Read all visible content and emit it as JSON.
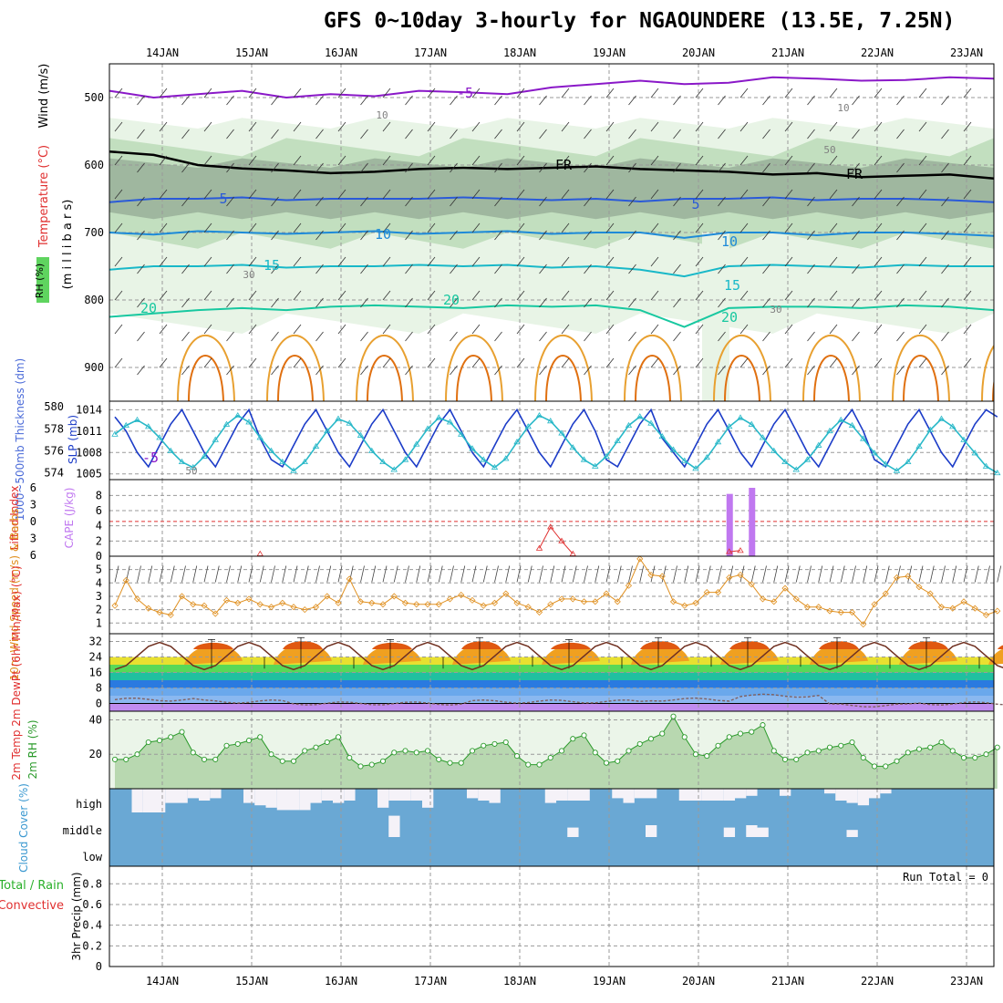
{
  "title": "GFS 0~10day 3-hourly for NGAOUNDERE (13.5E, 7.25N)",
  "colors": {
    "rh_light": "#e8f4e6",
    "rh_mid": "#c2dfbf",
    "rh_dark": "#9fb79f",
    "rh_green": "#5fd45f",
    "rh_bright": "#00e000",
    "temp_purple": "#8a18c8",
    "temp_blue": "#2a5ad8",
    "temp_lightblue": "#1e8ad8",
    "temp_cyan": "#18b8c8",
    "temp_teal": "#18c8a0",
    "temp_orange": "#e8a030",
    "temp_darkorange": "#e07010",
    "temp_magenta": "#e0109a",
    "slp": "#1c3cc8",
    "thickness": "#28b8c8",
    "cape": "#c078f0",
    "lifted": "#e03030",
    "wind10": "#e09020",
    "rh2m": "#2a9a2a",
    "cloud": "#6aa8d4",
    "cloud_white": "#f5f2f8"
  },
  "chart_data": [
    {
      "id": "upper_air",
      "type": "heatmap",
      "ylabel_parts": [
        "Wind (m/s)",
        "Temperature (°C)",
        "(m i l l i b a r s)",
        "RH (%)"
      ],
      "yticks": [
        500,
        600,
        700,
        800,
        900
      ],
      "ylim": [
        450,
        950
      ],
      "x_dates": [
        "14JAN",
        "15JAN",
        "16JAN",
        "17JAN",
        "18JAN",
        "19JAN",
        "20JAN",
        "21JAN",
        "22JAN",
        "23JAN"
      ],
      "isotherms": [
        {
          "label": "-5",
          "level": [
            490,
            500,
            495,
            490,
            500,
            495,
            498,
            490,
            492,
            495,
            485,
            480,
            475,
            480,
            478,
            470,
            472,
            475,
            474,
            470,
            472
          ],
          "color": "temp_purple"
        },
        {
          "label": "FR",
          "level": [
            580,
            585,
            600,
            605,
            608,
            612,
            610,
            606,
            604,
            606,
            604,
            602,
            606,
            608,
            610,
            614,
            612,
            618,
            616,
            614,
            620
          ],
          "color": "#000000"
        },
        {
          "label": "5",
          "level": [
            655,
            650,
            650,
            648,
            652,
            650,
            650,
            650,
            648,
            650,
            652,
            650,
            654,
            650,
            650,
            648,
            652,
            650,
            650,
            652,
            655
          ],
          "color": "temp_blue"
        },
        {
          "label": "10",
          "level": [
            700,
            703,
            698,
            700,
            702,
            700,
            698,
            702,
            700,
            698,
            702,
            700,
            700,
            708,
            700,
            700,
            704,
            700,
            700,
            702,
            705
          ],
          "color": "temp_lightblue"
        },
        {
          "label": "15",
          "level": [
            755,
            750,
            750,
            748,
            752,
            750,
            750,
            748,
            750,
            748,
            752,
            750,
            755,
            765,
            750,
            748,
            750,
            752,
            748,
            750,
            750
          ],
          "color": "temp_cyan"
        },
        {
          "label": "20",
          "level": [
            825,
            820,
            815,
            812,
            815,
            810,
            808,
            810,
            812,
            808,
            810,
            808,
            815,
            840,
            812,
            810,
            810,
            812,
            808,
            810,
            815
          ],
          "color": "temp_teal"
        }
      ],
      "labels_text": [
        "-5",
        "-5",
        "FR",
        "FR",
        "5",
        "5",
        "10",
        "10",
        "15",
        "15",
        "20",
        "20",
        "20",
        "10",
        "10",
        "50",
        "50",
        "30",
        "30"
      ]
    },
    {
      "id": "slp_thickness",
      "type": "line",
      "ylabel_left": "1000~500mb Thickness (dm)",
      "ylabel_right": "SLP (mb)",
      "thickness_ticks": [
        574,
        576,
        578,
        580
      ],
      "slp_ticks": [
        1005,
        1008,
        1011,
        1014
      ],
      "slp": [
        1013,
        1011,
        1008,
        1006,
        1009,
        1012,
        1014,
        1011,
        1008,
        1006,
        1009,
        1012,
        1014,
        1010,
        1007,
        1006,
        1009,
        1012,
        1014,
        1011,
        1008,
        1006,
        1009,
        1012,
        1014,
        1011,
        1008,
        1006,
        1009,
        1012,
        1014,
        1011,
        1008,
        1006,
        1009,
        1012,
        1014,
        1011,
        1008,
        1006,
        1009,
        1012,
        1014,
        1011,
        1007,
        1006,
        1009,
        1012,
        1014,
        1010,
        1008,
        1006,
        1009,
        1012,
        1014,
        1011,
        1008,
        1006,
        1009,
        1012,
        1014,
        1011,
        1008,
        1006,
        1009,
        1012,
        1014,
        1011,
        1007,
        1006,
        1009,
        1012,
        1014,
        1011,
        1008,
        1006,
        1009,
        1012,
        1014,
        1013
      ],
      "thickness": [
        577.5,
        578.3,
        578.8,
        578.2,
        577.2,
        576.0,
        575.0,
        574.5,
        575.5,
        577.0,
        578.4,
        579.2,
        578.6,
        577.2,
        576.0,
        575.0,
        574.2,
        575.0,
        576.4,
        577.8,
        578.9,
        578.5,
        577.4,
        576.0,
        575.0,
        574.3,
        575.2,
        576.6,
        578.0,
        579.0,
        578.6,
        577.5,
        576.2,
        575.2,
        574.5,
        575.3,
        576.8,
        578.2,
        579.2,
        578.7,
        577.6,
        576.3,
        575.2,
        574.6,
        575.5,
        576.9,
        578.3,
        579.1,
        578.5,
        577.3,
        576.1,
        575.1,
        574.4,
        575.4,
        576.8,
        578.2,
        579.0,
        578.4,
        577.2,
        576.0,
        575.0,
        574.3,
        575.2,
        576.5,
        577.8,
        578.8,
        578.3,
        577.1,
        575.8,
        574.8,
        574.2,
        575.0,
        576.4,
        577.9,
        578.9,
        578.2,
        577.0,
        575.8,
        574.6,
        574.0
      ]
    },
    {
      "id": "cape_li",
      "type": "bar",
      "ylabel_left": "Lifted Index",
      "ylabel_right": "CAPE (J/kg)",
      "li_ticks": [
        -6,
        -3,
        0,
        3,
        6
      ],
      "cape_ticks": [
        0,
        2,
        4,
        6,
        8
      ],
      "cape_bars": [
        {
          "x": 55,
          "value": 8.2
        },
        {
          "x": 57,
          "value": 9.0
        }
      ],
      "lifted_index": [
        {
          "x": 13,
          "value": 5.8
        },
        {
          "x": 38,
          "value": 4.8
        },
        {
          "x": 39,
          "value": 1.0
        },
        {
          "x": 40,
          "value": 3.5
        },
        {
          "x": 41,
          "value": 5.8
        },
        {
          "x": 55,
          "value": 5.4
        },
        {
          "x": 56,
          "value": 5.2
        }
      ]
    },
    {
      "id": "wind10",
      "type": "line",
      "ylabel": "10m Wind Speed (m/s) & Barbs",
      "yticks": [
        1,
        2,
        3,
        4,
        5
      ],
      "ylim": [
        0,
        6
      ],
      "values": [
        2.3,
        4.2,
        2.8,
        2.1,
        1.8,
        1.6,
        3.0,
        2.4,
        2.3,
        1.7,
        2.7,
        2.5,
        2.8,
        2.4,
        2.2,
        2.5,
        2.2,
        2.0,
        2.2,
        3.0,
        2.5,
        4.3,
        2.6,
        2.5,
        2.4,
        3.0,
        2.5,
        2.4,
        2.4,
        2.4,
        2.8,
        3.1,
        2.7,
        2.3,
        2.5,
        3.2,
        2.5,
        2.2,
        1.8,
        2.4,
        2.8,
        2.8,
        2.6,
        2.6,
        3.2,
        2.6,
        3.8,
        5.8,
        4.6,
        4.5,
        2.6,
        2.3,
        2.5,
        3.3,
        3.3,
        4.4,
        4.6,
        3.9,
        2.8,
        2.6,
        3.6,
        2.8,
        2.2,
        2.2,
        1.9,
        1.8,
        1.8,
        0.9,
        2.4,
        3.2,
        4.4,
        4.5,
        3.7,
        3.2,
        2.2,
        2.1,
        2.6,
        2.1,
        1.6,
        1.9
      ]
    },
    {
      "id": "temp2m",
      "type": "area",
      "ylabel": "2m Temp 2m DewPt (6hr Min/Max) (°C)",
      "yticks": [
        0,
        8,
        16,
        24,
        32
      ],
      "ylim": [
        -4,
        36
      ],
      "temp_max": [
        31,
        32,
        31,
        32,
        31,
        32,
        32,
        32,
        32,
        31
      ],
      "temp_min": [
        18,
        18,
        18,
        19,
        18,
        19,
        19,
        18,
        18,
        18
      ],
      "dewpoint": [
        2,
        1,
        0,
        0,
        1,
        1,
        2,
        4,
        -1,
        0
      ]
    },
    {
      "id": "rh2m",
      "type": "area",
      "ylabel": "2m RH (%)",
      "yticks": [
        20,
        40
      ],
      "ylim": [
        0,
        45
      ],
      "values": [
        17,
        17,
        20,
        27,
        28,
        30,
        33,
        21,
        17,
        17,
        25,
        26,
        28,
        30,
        20,
        16,
        16,
        22,
        24,
        27,
        30,
        18,
        13,
        14,
        16,
        21,
        22,
        21,
        22,
        17,
        15,
        15,
        22,
        25,
        26,
        27,
        19,
        14,
        14,
        18,
        22,
        29,
        31,
        21,
        15,
        16,
        22,
        26,
        29,
        32,
        42,
        30,
        20,
        19,
        25,
        30,
        32,
        33,
        37,
        22,
        17,
        17,
        21,
        22,
        24,
        25,
        27,
        18,
        13,
        13,
        16,
        21,
        23,
        24,
        27,
        22,
        18,
        18,
        20,
        24
      ]
    },
    {
      "id": "cloud",
      "type": "heatmap",
      "ylabel": "Cloud Cover (%)",
      "rows": [
        "high",
        "middle",
        "low"
      ]
    },
    {
      "id": "precip",
      "type": "bar",
      "ylabel_parts": [
        "Total / Rain",
        "Convective",
        "3hr Precip (mm)"
      ],
      "yticks": [
        0,
        0.2,
        0.4,
        0.6,
        0.8
      ],
      "ylim": [
        0,
        1
      ],
      "run_total": "Run Total = 0",
      "values": []
    }
  ]
}
